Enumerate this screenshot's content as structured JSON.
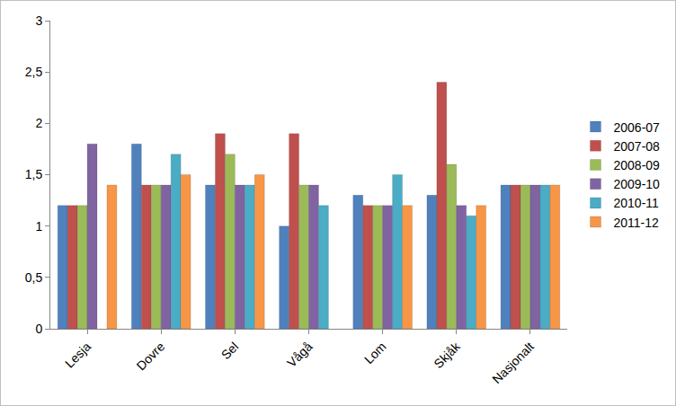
{
  "chart_data": {
    "type": "bar",
    "categories": [
      "Lesja",
      "Dovre",
      "Sel",
      "Vågå",
      "Lom",
      "Skjåk",
      "Nasjonalt"
    ],
    "series": [
      {
        "name": "2006-07",
        "color": "#4f81bd",
        "values": [
          1.2,
          1.8,
          1.4,
          1.0,
          1.3,
          1.3,
          1.4
        ]
      },
      {
        "name": "2007-08",
        "color": "#c0504d",
        "values": [
          1.2,
          1.4,
          1.9,
          1.9,
          1.2,
          2.4,
          1.4
        ]
      },
      {
        "name": "2008-09",
        "color": "#9bbb59",
        "values": [
          1.2,
          1.4,
          1.7,
          1.4,
          1.2,
          1.6,
          1.4
        ]
      },
      {
        "name": "2009-10",
        "color": "#8064a2",
        "values": [
          1.8,
          1.4,
          1.4,
          1.4,
          1.2,
          1.2,
          1.4
        ]
      },
      {
        "name": "2010-11",
        "color": "#4bacc6",
        "values": [
          null,
          1.7,
          1.4,
          1.2,
          1.5,
          1.1,
          1.4
        ]
      },
      {
        "name": "2011-12",
        "color": "#f79646",
        "values": [
          1.4,
          1.5,
          1.5,
          null,
          1.2,
          1.2,
          1.4
        ]
      }
    ],
    "ylim": [
      0,
      3
    ],
    "yticks": [
      0,
      {
        "value": 0.5,
        "label": "0,5"
      },
      1,
      {
        "value": 1.5,
        "label": "1,5"
      },
      2,
      {
        "value": 2.5,
        "label": "2,5"
      },
      3
    ],
    "grid": false,
    "legend": "right"
  }
}
